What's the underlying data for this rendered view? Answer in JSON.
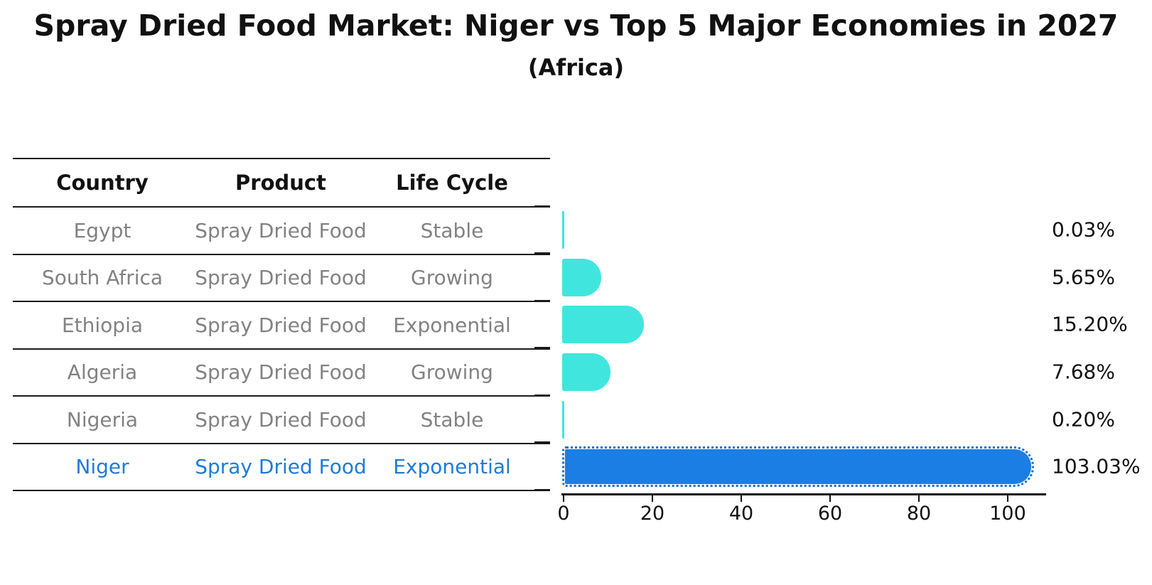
{
  "title": "Spray Dried Food Market: Niger vs Top 5 Major Economies in 2027",
  "subtitle": "(Africa)",
  "table": {
    "headers": [
      "Country",
      "Product",
      "Life Cycle"
    ],
    "rows": [
      {
        "country": "Egypt",
        "product": "Spray Dried Food",
        "life_cycle": "Stable",
        "highlight": false
      },
      {
        "country": "South Africa",
        "product": "Spray Dried Food",
        "life_cycle": "Growing",
        "highlight": false
      },
      {
        "country": "Ethiopia",
        "product": "Spray Dried Food",
        "life_cycle": "Exponential",
        "highlight": false
      },
      {
        "country": "Algeria",
        "product": "Spray Dried Food",
        "life_cycle": "Growing",
        "highlight": false
      },
      {
        "country": "Nigeria",
        "product": "Spray Dried Food",
        "life_cycle": "Stable",
        "highlight": false
      },
      {
        "country": "Niger",
        "product": "Spray Dried Food",
        "life_cycle": "Exponential",
        "highlight": true
      }
    ]
  },
  "chart_data": {
    "type": "bar",
    "orientation": "horizontal",
    "title": "Spray Dried Food Market: Niger vs Top 5 Major Economies in 2027 (Africa)",
    "categories": [
      "Egypt",
      "South Africa",
      "Ethiopia",
      "Algeria",
      "Nigeria",
      "Niger"
    ],
    "values": [
      0.03,
      5.65,
      15.2,
      7.68,
      0.2,
      103.03
    ],
    "value_labels": [
      "0.03%",
      "5.65%",
      "15.20%",
      "7.68%",
      "0.20%",
      "103.03%"
    ],
    "highlight_index": 5,
    "x_ticks": [
      0,
      20,
      40,
      60,
      80,
      100
    ],
    "xlim": [
      0,
      108
    ],
    "grid": false,
    "legend_position": "none",
    "colors": {
      "bar_default": "#40E6DE",
      "bar_highlight": "#1B7EE4",
      "highlight_text": "#1f7ad8",
      "axis": "#111111",
      "table_text": "#828282",
      "table_header_text": "#111111"
    }
  }
}
